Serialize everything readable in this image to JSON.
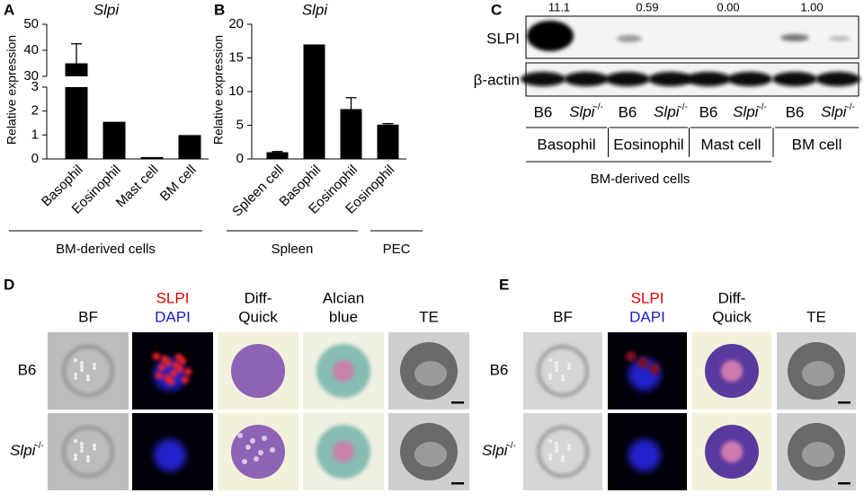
{
  "panel_labels": [
    "A",
    "B",
    "C",
    "D",
    "E"
  ],
  "chart_data": [
    {
      "type": "bar",
      "title": "Slpi",
      "y_label": "Relative expression",
      "categories": [
        "Basophil",
        "Eosinophil",
        "Mast cell",
        "BM cell"
      ],
      "values": [
        35,
        1.55,
        0.08,
        1.0
      ],
      "errors": [
        7.5,
        null,
        null,
        null
      ],
      "color": "#000000",
      "ylim": [
        0,
        50
      ],
      "axis_break": [
        3,
        30
      ],
      "yticks": [
        0,
        1,
        2,
        3,
        30,
        40,
        50
      ],
      "groups": [
        {
          "label": "BM-derived cells",
          "size": 4
        }
      ]
    },
    {
      "type": "bar",
      "title": "Slpi",
      "y_label": "Relative expression",
      "categories": [
        "Spleen cell",
        "Basophil",
        "Eosinophil",
        "Eosinophil"
      ],
      "values": [
        1.0,
        17.0,
        7.4,
        5.1
      ],
      "errors": [
        0.1,
        null,
        1.7,
        0.15
      ],
      "color": "#000000",
      "ylim": [
        0,
        20
      ],
      "yticks": [
        0,
        5,
        10,
        15,
        20
      ],
      "groups": [
        {
          "label": "Spleen",
          "size": 3
        },
        {
          "label": "PEC",
          "size": 1
        }
      ]
    }
  ],
  "blot": {
    "quantification": [
      "11.1",
      "0.59",
      "0.00",
      "1.00"
    ],
    "rows": [
      "SLPI",
      "β-actin"
    ],
    "lanes": [
      "B6",
      {
        "name": "Slpi",
        "superscript": "-/-"
      },
      "B6",
      {
        "name": "Slpi",
        "superscript": "-/-"
      },
      "B6",
      {
        "name": "Slpi",
        "superscript": "-/-"
      },
      "B6",
      {
        "name": "Slpi",
        "superscript": "-/-"
      }
    ],
    "cell_types": [
      "Basophil",
      "Eosinophil",
      "Mast cell",
      "BM cell"
    ],
    "group": "BM-derived cells"
  },
  "micrographs": [
    {
      "columns": [
        [
          "BF"
        ],
        [
          "SLPI",
          "DAPI"
        ],
        [
          "Diff-",
          "Quick"
        ],
        [
          "Alcian",
          "blue"
        ],
        [
          "TE"
        ]
      ],
      "rows": [
        "B6",
        {
          "name": "Slpi",
          "superscript": "-/-"
        }
      ]
    },
    {
      "columns": [
        [
          "BF"
        ],
        [
          "SLPI",
          "DAPI"
        ],
        [
          "Diff-",
          "Quick"
        ],
        [
          "TE"
        ]
      ],
      "rows": [
        "B6",
        {
          "name": "Slpi",
          "superscript": "-/-"
        }
      ]
    }
  ]
}
